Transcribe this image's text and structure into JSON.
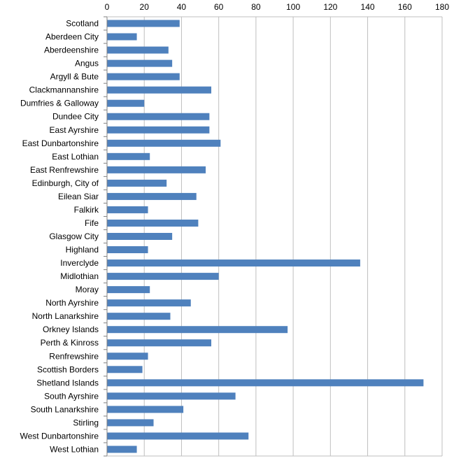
{
  "chart_data": {
    "type": "bar",
    "orientation": "horizontal",
    "title": "",
    "xlabel": "",
    "ylabel": "",
    "xlim": [
      0,
      180
    ],
    "x_ticks": [
      0,
      20,
      40,
      60,
      80,
      100,
      120,
      140,
      160,
      180
    ],
    "x_axis_position": "top",
    "grid": true,
    "legend": "none",
    "bar_color": "#4f81bd",
    "grid_color": "#bfbfbf",
    "categories": [
      "Scotland",
      "Aberdeen City",
      "Aberdeenshire",
      "Angus",
      "Argyll & Bute",
      "Clackmannanshire",
      "Dumfries & Galloway",
      "Dundee City",
      "East Ayrshire",
      "East Dunbartonshire",
      "East Lothian",
      "East Renfrewshire",
      "Edinburgh, City of",
      "Eilean Siar",
      "Falkirk",
      "Fife",
      "Glasgow City",
      "Highland",
      "Inverclyde",
      "Midlothian",
      "Moray",
      "North Ayrshire",
      "North Lanarkshire",
      "Orkney Islands",
      "Perth & Kinross",
      "Renfrewshire",
      "Scottish Borders",
      "Shetland Islands",
      "South Ayrshire",
      "South Lanarkshire",
      "Stirling",
      "West Dunbartonshire",
      "West Lothian"
    ],
    "values": [
      39,
      16,
      33,
      35,
      39,
      56,
      20,
      55,
      55,
      61,
      23,
      53,
      32,
      48,
      22,
      49,
      35,
      22,
      136,
      60,
      23,
      45,
      34,
      97,
      56,
      22,
      19,
      170,
      69,
      41,
      25,
      76,
      16
    ]
  }
}
